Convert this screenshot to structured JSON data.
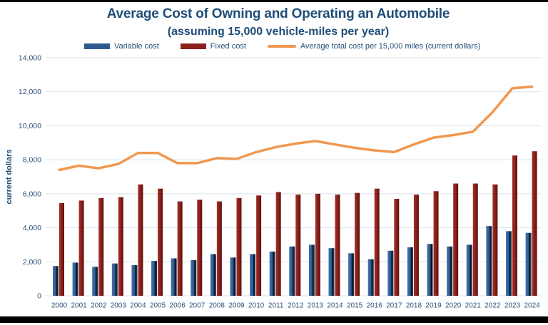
{
  "page": {
    "background": "#ffffff",
    "top_bar_color": "#000000",
    "bottom_bar_color": "#000000"
  },
  "chart_data": {
    "type": "combo",
    "title": "Average Cost of Owning and Operating an Automobile",
    "subtitle": "(assuming 15,000 vehicle-miles per year)",
    "ylabel": "current dollars",
    "xlabel": "",
    "ylim": [
      0,
      14000
    ],
    "ytick_step": 2000,
    "ytick_labels": [
      "0",
      "2,000",
      "4,000",
      "6,000",
      "8,000",
      "10,000",
      "12,000",
      "14,000"
    ],
    "grid": true,
    "legend_position": "top",
    "categories": [
      "2000",
      "2001",
      "2002",
      "2003",
      "2004",
      "2005",
      "2006",
      "2007",
      "2008",
      "2009",
      "2010",
      "2011",
      "2012",
      "2013",
      "2014",
      "2015",
      "2016",
      "2017",
      "2018",
      "2019",
      "2020",
      "2021",
      "2022",
      "2023",
      "2024"
    ],
    "series": [
      {
        "name": "Variable cost",
        "kind": "bar",
        "color": "#2E5B8F",
        "values": [
          1750,
          1950,
          1700,
          1900,
          1800,
          2050,
          2200,
          2100,
          2450,
          2250,
          2450,
          2600,
          2900,
          3000,
          2800,
          2500,
          2150,
          2650,
          2850,
          3050,
          2900,
          3000,
          4100,
          3800,
          3700
        ]
      },
      {
        "name": "Fixed cost",
        "kind": "bar",
        "color": "#8B201C",
        "values": [
          5450,
          5600,
          5750,
          5800,
          6550,
          6300,
          5550,
          5650,
          5550,
          5750,
          5900,
          6100,
          5950,
          6000,
          5950,
          6050,
          6300,
          5700,
          5950,
          6150,
          6600,
          6600,
          6550,
          8250,
          8500
        ]
      },
      {
        "name": "Average total cost per 15,000 miles (current dollars)",
        "kind": "line",
        "color": "#F09850",
        "values": [
          7400,
          7650,
          7500,
          7750,
          8400,
          8400,
          7800,
          7800,
          8100,
          8050,
          8450,
          8750,
          8950,
          9100,
          8900,
          8700,
          8550,
          8450,
          8900,
          9300,
          9450,
          9650,
          10800,
          12200,
          12300
        ]
      }
    ],
    "colors": {
      "title_text": "#1F4E79",
      "axis_text": "#2F5379",
      "gridline": "#D9E2EE"
    }
  }
}
